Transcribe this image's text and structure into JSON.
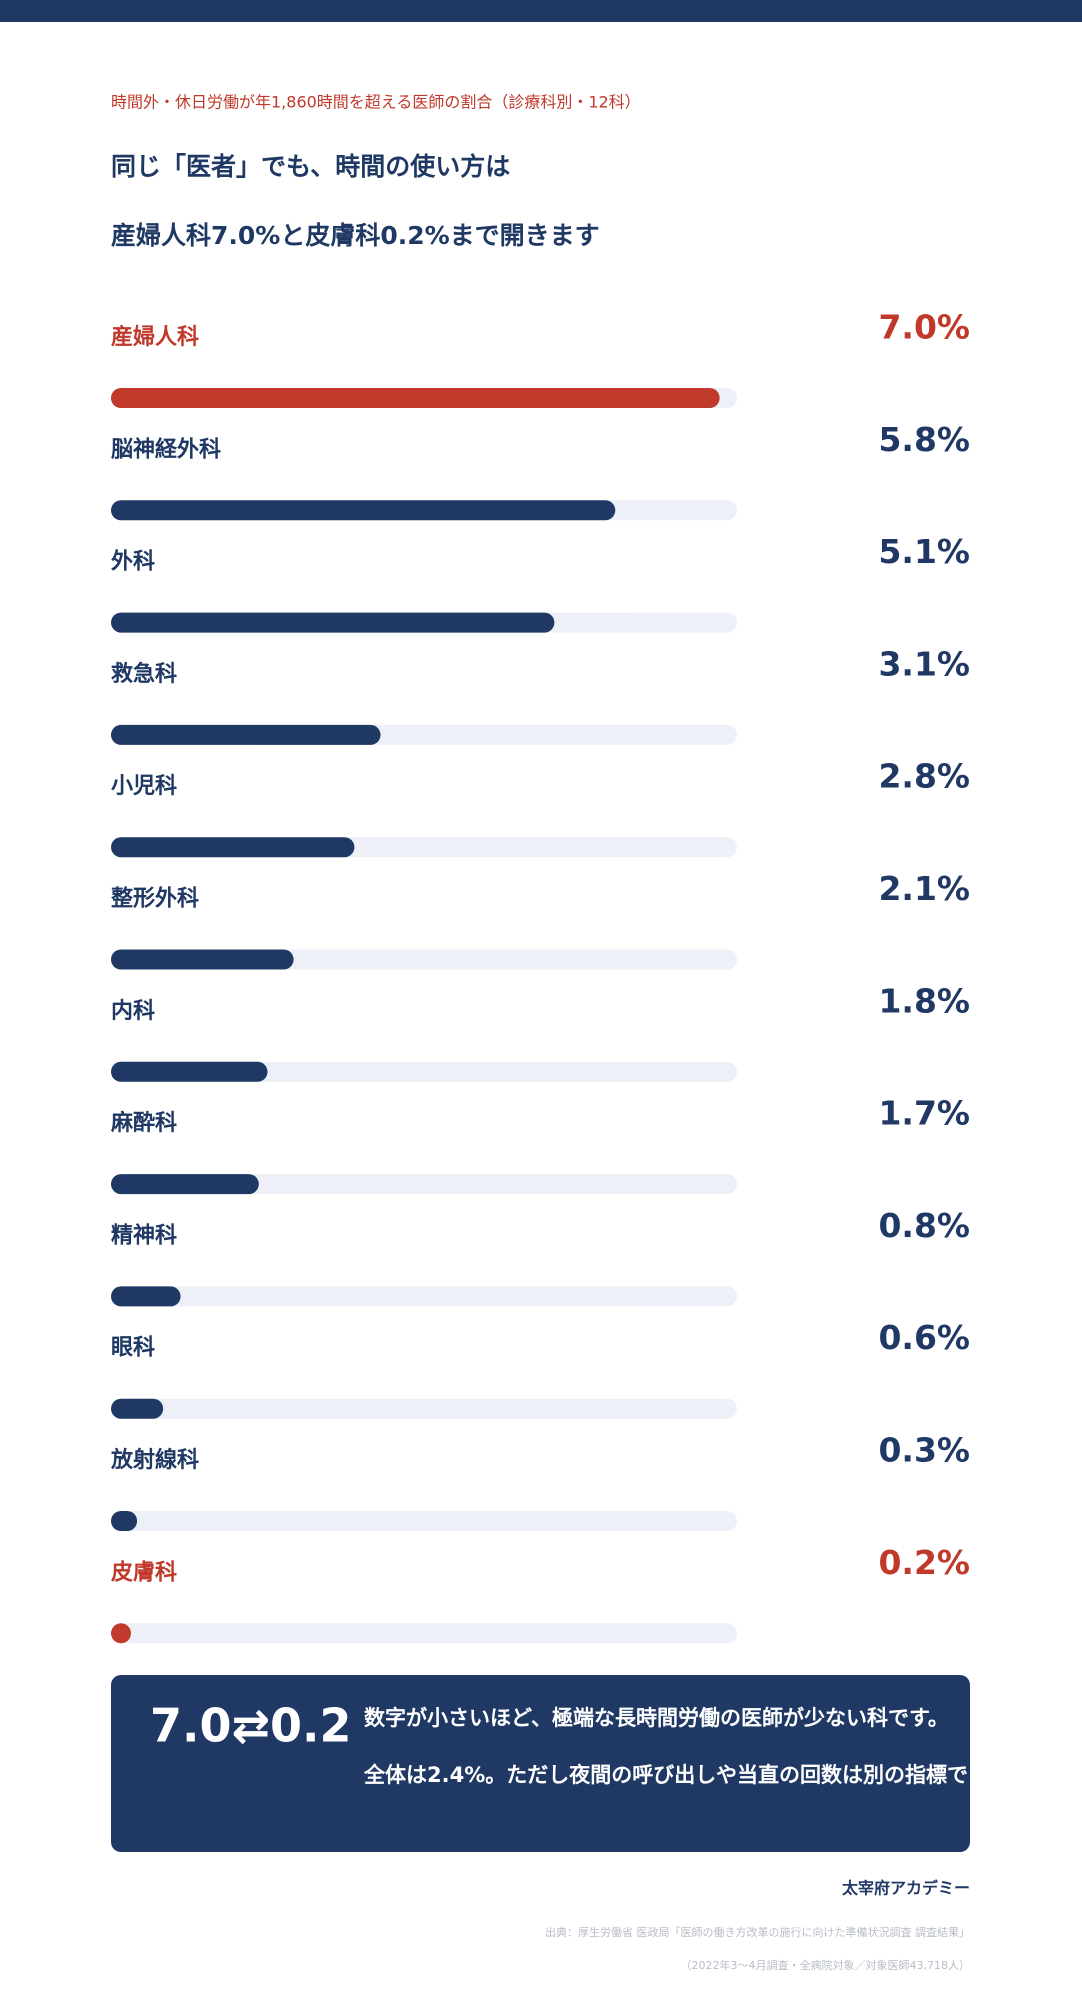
{
  "chart_data": {
    "type": "bar",
    "subtitle": "時間外・休日労働が年1,860時間を超える医師の割合（診療科別・12科）",
    "title_lines": [
      "同じ「医者」でも、時間の使い方は",
      "産婦人科7.0%と皮膚科0.2%まで開きます"
    ],
    "categories": [
      "産婦人科",
      "脳神経外科",
      "外科",
      "救急科",
      "小児科",
      "整形外科",
      "内科",
      "麻酔科",
      "精神科",
      "眼科",
      "放射線科",
      "皮膚科"
    ],
    "values": [
      7.0,
      5.8,
      5.1,
      3.1,
      2.8,
      2.1,
      1.8,
      1.7,
      0.8,
      0.6,
      0.3,
      0.2
    ],
    "value_labels": [
      "7.0%",
      "5.8%",
      "5.1%",
      "3.1%",
      "2.8%",
      "2.1%",
      "1.8%",
      "1.7%",
      "0.8%",
      "0.6%",
      "0.3%",
      "0.2%"
    ],
    "colors": [
      "#c0392b",
      "#1f3864",
      "#1f3864",
      "#1f3864",
      "#1f3864",
      "#1f3864",
      "#1f3864",
      "#1f3864",
      "#1f3864",
      "#1f3864",
      "#1f3864",
      "#c0392b"
    ],
    "xlim": [
      0,
      7.2
    ]
  },
  "callout": {
    "headline": "7.0⇄0.2",
    "lines": [
      "数字が小さいほど、極端な長時間労働の医師が少ない科です。",
      "全体は2.4%。ただし夜間の呼び出しや当直の回数は別の指標で"
    ]
  },
  "footer": {
    "brand": "太宰府アカデミー",
    "source": "出典：厚生労働省 医政局「医師の働き方改革の施行に向けた準備状況調査 調査結果」",
    "note": "（2022年3〜4月調査・全病院対象／対象医師43,718人）"
  }
}
